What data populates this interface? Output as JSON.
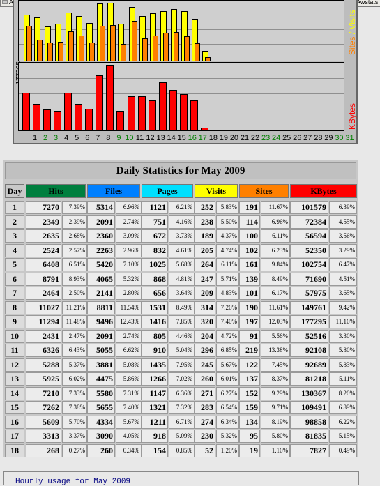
{
  "browser": {
    "tabs": [
      "Awstats - Statistiken",
      "Awstats - Statistiken",
      "Road ISO",
      "TV - map | Reports",
      "Awstats"
    ]
  },
  "graph": {
    "kbytes_max_label": "177295",
    "sites_visits_label_a": "Sites",
    "sites_visits_label_b": " / Visits",
    "kbytes_label": "KBytes",
    "visits_bars": [
      252,
      238,
      189,
      205,
      264,
      247,
      209,
      314,
      320,
      204,
      296,
      245,
      260,
      271,
      283,
      274,
      230,
      52
    ],
    "sites_bars": [
      191,
      114,
      100,
      102,
      161,
      139,
      101,
      190,
      197,
      91,
      219,
      122,
      137,
      152,
      159,
      134,
      95,
      19
    ],
    "kbytes_bars": [
      101579,
      72384,
      56594,
      52350,
      102754,
      71690,
      57975,
      149761,
      177295,
      52516,
      92108,
      92689,
      81218,
      130367,
      109491,
      98858,
      81835,
      7827
    ],
    "days": [
      "1",
      "2",
      "3",
      "4",
      "5",
      "6",
      "7",
      "8",
      "9",
      "10",
      "11",
      "12",
      "13",
      "14",
      "15",
      "16",
      "17",
      "18",
      "19",
      "20",
      "21",
      "22",
      "23",
      "24",
      "25",
      "26",
      "27",
      "28",
      "29",
      "30",
      "31"
    ],
    "weekend_days": [
      "2",
      "3",
      "9",
      "10",
      "16",
      "17",
      "23",
      "24",
      "30",
      "31"
    ],
    "colors": {
      "visits": "#ffff00",
      "sites": "#ff8000",
      "kbytes": "#ff0000",
      "weekend": "#007f00"
    }
  },
  "daily": {
    "title": "Daily Statistics for May 2009",
    "headers": [
      {
        "label": "Day",
        "bg": "#c8c8c8",
        "fg": "#000000"
      },
      {
        "label": "Hits",
        "bg": "#007f3f",
        "fg": "#000000"
      },
      {
        "label": "Files",
        "bg": "#0080ff",
        "fg": "#000000"
      },
      {
        "label": "Pages",
        "bg": "#00e0ff",
        "fg": "#000000"
      },
      {
        "label": "Visits",
        "bg": "#ffff00",
        "fg": "#000000"
      },
      {
        "label": "Sites",
        "bg": "#ff8000",
        "fg": "#000000"
      },
      {
        "label": "KBytes",
        "bg": "#ff0000",
        "fg": "#000000"
      }
    ],
    "rows": [
      {
        "day": "1",
        "hits": "7270",
        "hits_p": "7.39%",
        "files": "5314",
        "files_p": "6.96%",
        "pages": "1121",
        "pages_p": "6.21%",
        "visits": "252",
        "visits_p": "5.83%",
        "sites": "191",
        "sites_p": "11.67%",
        "kb": "101579",
        "kb_p": "6.39%"
      },
      {
        "day": "2",
        "hits": "2349",
        "hits_p": "2.39%",
        "files": "2091",
        "files_p": "2.74%",
        "pages": "751",
        "pages_p": "4.16%",
        "visits": "238",
        "visits_p": "5.50%",
        "sites": "114",
        "sites_p": "6.96%",
        "kb": "72384",
        "kb_p": "4.55%"
      },
      {
        "day": "3",
        "hits": "2635",
        "hits_p": "2.68%",
        "files": "2360",
        "files_p": "3.09%",
        "pages": "672",
        "pages_p": "3.73%",
        "visits": "189",
        "visits_p": "4.37%",
        "sites": "100",
        "sites_p": "6.11%",
        "kb": "56594",
        "kb_p": "3.56%"
      },
      {
        "day": "4",
        "hits": "2524",
        "hits_p": "2.57%",
        "files": "2263",
        "files_p": "2.96%",
        "pages": "832",
        "pages_p": "4.61%",
        "visits": "205",
        "visits_p": "4.74%",
        "sites": "102",
        "sites_p": "6.23%",
        "kb": "52350",
        "kb_p": "3.29%"
      },
      {
        "day": "5",
        "hits": "6408",
        "hits_p": "6.51%",
        "files": "5420",
        "files_p": "7.10%",
        "pages": "1025",
        "pages_p": "5.68%",
        "visits": "264",
        "visits_p": "6.11%",
        "sites": "161",
        "sites_p": "9.84%",
        "kb": "102754",
        "kb_p": "6.47%"
      },
      {
        "day": "6",
        "hits": "8791",
        "hits_p": "8.93%",
        "files": "4065",
        "files_p": "5.32%",
        "pages": "868",
        "pages_p": "4.81%",
        "visits": "247",
        "visits_p": "5.71%",
        "sites": "139",
        "sites_p": "8.49%",
        "kb": "71690",
        "kb_p": "4.51%"
      },
      {
        "day": "7",
        "hits": "2464",
        "hits_p": "2.50%",
        "files": "2141",
        "files_p": "2.80%",
        "pages": "656",
        "pages_p": "3.64%",
        "visits": "209",
        "visits_p": "4.83%",
        "sites": "101",
        "sites_p": "6.17%",
        "kb": "57975",
        "kb_p": "3.65%"
      },
      {
        "day": "8",
        "hits": "11027",
        "hits_p": "11.21%",
        "files": "8811",
        "files_p": "11.54%",
        "pages": "1531",
        "pages_p": "8.49%",
        "visits": "314",
        "visits_p": "7.26%",
        "sites": "190",
        "sites_p": "11.61%",
        "kb": "149761",
        "kb_p": "9.42%"
      },
      {
        "day": "9",
        "hits": "11294",
        "hits_p": "11.48%",
        "files": "9496",
        "files_p": "12.43%",
        "pages": "1416",
        "pages_p": "7.85%",
        "visits": "320",
        "visits_p": "7.40%",
        "sites": "197",
        "sites_p": "12.03%",
        "kb": "177295",
        "kb_p": "11.16%"
      },
      {
        "day": "10",
        "hits": "2431",
        "hits_p": "2.47%",
        "files": "2091",
        "files_p": "2.74%",
        "pages": "805",
        "pages_p": "4.46%",
        "visits": "204",
        "visits_p": "4.72%",
        "sites": "91",
        "sites_p": "5.56%",
        "kb": "52516",
        "kb_p": "3.30%"
      },
      {
        "day": "11",
        "hits": "6326",
        "hits_p": "6.43%",
        "files": "5055",
        "files_p": "6.62%",
        "pages": "910",
        "pages_p": "5.04%",
        "visits": "296",
        "visits_p": "6.85%",
        "sites": "219",
        "sites_p": "13.38%",
        "kb": "92108",
        "kb_p": "5.80%"
      },
      {
        "day": "12",
        "hits": "5288",
        "hits_p": "5.37%",
        "files": "3881",
        "files_p": "5.08%",
        "pages": "1435",
        "pages_p": "7.95%",
        "visits": "245",
        "visits_p": "5.67%",
        "sites": "122",
        "sites_p": "7.45%",
        "kb": "92689",
        "kb_p": "5.83%"
      },
      {
        "day": "13",
        "hits": "5925",
        "hits_p": "6.02%",
        "files": "4475",
        "files_p": "5.86%",
        "pages": "1266",
        "pages_p": "7.02%",
        "visits": "260",
        "visits_p": "6.01%",
        "sites": "137",
        "sites_p": "8.37%",
        "kb": "81218",
        "kb_p": "5.11%"
      },
      {
        "day": "14",
        "hits": "7210",
        "hits_p": "7.33%",
        "files": "5580",
        "files_p": "7.31%",
        "pages": "1147",
        "pages_p": "6.36%",
        "visits": "271",
        "visits_p": "6.27%",
        "sites": "152",
        "sites_p": "9.29%",
        "kb": "130367",
        "kb_p": "8.20%"
      },
      {
        "day": "15",
        "hits": "7262",
        "hits_p": "7.38%",
        "files": "5655",
        "files_p": "7.40%",
        "pages": "1321",
        "pages_p": "7.32%",
        "visits": "283",
        "visits_p": "6.54%",
        "sites": "159",
        "sites_p": "9.71%",
        "kb": "109491",
        "kb_p": "6.89%"
      },
      {
        "day": "16",
        "hits": "5609",
        "hits_p": "5.70%",
        "files": "4334",
        "files_p": "5.67%",
        "pages": "1211",
        "pages_p": "6.71%",
        "visits": "274",
        "visits_p": "6.34%",
        "sites": "134",
        "sites_p": "8.19%",
        "kb": "98858",
        "kb_p": "6.22%"
      },
      {
        "day": "17",
        "hits": "3313",
        "hits_p": "3.37%",
        "files": "3090",
        "files_p": "4.05%",
        "pages": "918",
        "pages_p": "5.09%",
        "visits": "230",
        "visits_p": "5.32%",
        "sites": "95",
        "sites_p": "5.80%",
        "kb": "81835",
        "kb_p": "5.15%"
      },
      {
        "day": "18",
        "hits": "268",
        "hits_p": "0.27%",
        "files": "260",
        "files_p": "0.34%",
        "pages": "154",
        "pages_p": "0.85%",
        "visits": "52",
        "visits_p": "1.20%",
        "sites": "19",
        "sites_p": "1.16%",
        "kb": "7827",
        "kb_p": "0.49%"
      }
    ]
  },
  "hourly": {
    "title": "Hourly usage for May 2009"
  }
}
